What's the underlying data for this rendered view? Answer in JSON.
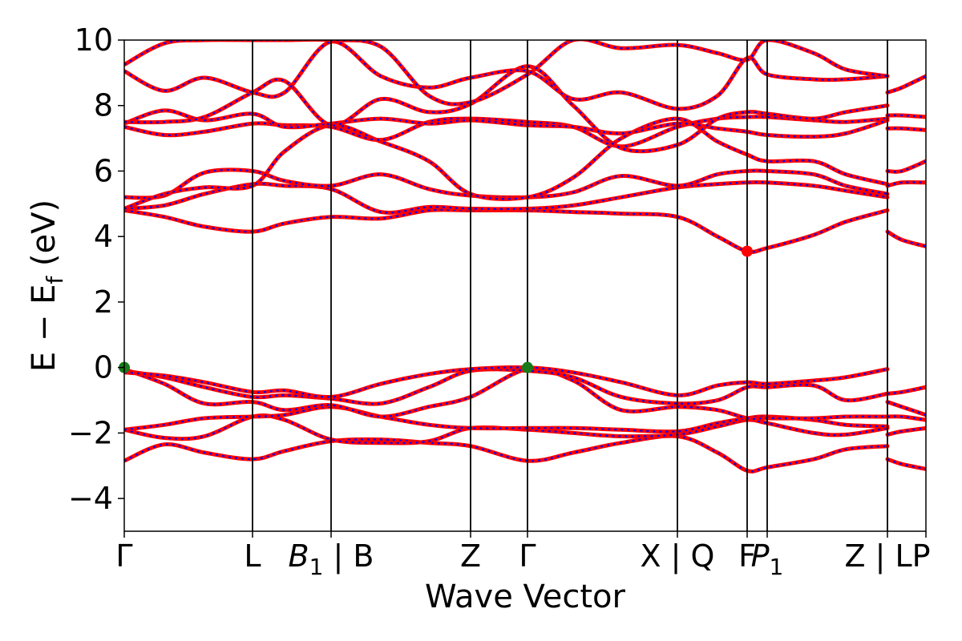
{
  "chart_data": {
    "type": "line",
    "xlabel": "Wave Vector",
    "ylabel": "E − E_f (eV)",
    "ylabel_parts": {
      "main": "E − E",
      "sub": "f",
      "unit": " (eV)"
    },
    "ylim": [
      -5,
      10
    ],
    "x_range": [
      0,
      100
    ],
    "y_ticks": [
      "−4",
      "−2",
      "0",
      "2",
      "4",
      "6",
      "8",
      "10"
    ],
    "y_tick_values": [
      -4,
      -2,
      0,
      2,
      4,
      6,
      8,
      10
    ],
    "kpoints": [
      {
        "label": "Γ",
        "x": 0
      },
      {
        "label": "L",
        "x": 16
      },
      {
        "label": "B",
        "sub": "1",
        "suffix": " | B",
        "x": 25.8
      },
      {
        "label": "Z",
        "x": 43.2
      },
      {
        "label": "Γ",
        "x": 50.3
      },
      {
        "label": "X | Q",
        "x": 69
      },
      {
        "label": "F",
        "x": 77.7
      },
      {
        "label": "P",
        "sub": "1",
        "x": 80.2
      },
      {
        "label": "Z | LP",
        "x": 95.2
      },
      {
        "label": "",
        "x": 100
      }
    ],
    "colors": {
      "band_solid": "#ff0000",
      "band_dashed": "#0000ff",
      "vbm_marker": "#1a7a1a",
      "cbm_marker": "#ff0000",
      "kpath_line": "#000000"
    },
    "markers": [
      {
        "name": "vbm",
        "x": 0,
        "y": 0,
        "color": "#1a7a1a"
      },
      {
        "name": "vbm",
        "x": 50.3,
        "y": 0,
        "color": "#1a7a1a"
      },
      {
        "name": "cbm",
        "x": 77.7,
        "y": 3.55,
        "color": "#ff0000"
      }
    ],
    "series": [
      {
        "x": [
          0,
          5,
          10,
          16,
          20,
          25.8,
          32,
          38,
          43.2,
          50.3,
          56,
          62,
          69,
          74,
          77.7,
          80.2,
          86,
          90,
          95.2
        ],
        "y": [
          -2.85,
          -2.35,
          -2.6,
          -2.8,
          -2.55,
          -2.25,
          -2.2,
          -2.3,
          -2.4,
          -2.85,
          -2.6,
          -2.3,
          -2.1,
          -2.6,
          -3.15,
          -3.05,
          -2.8,
          -2.5,
          -2.4
        ]
      },
      {
        "x": [
          0,
          5,
          10,
          16,
          20,
          25.8,
          32,
          38,
          43.2,
          50.3,
          56,
          62,
          69,
          74,
          77.7,
          80.2,
          86,
          90,
          95.2
        ],
        "y": [
          -1.9,
          -2.15,
          -2.1,
          -1.5,
          -1.6,
          -2.2,
          -2.3,
          -2.25,
          -1.85,
          -1.9,
          -2.0,
          -2.1,
          -2.05,
          -1.8,
          -1.6,
          -1.7,
          -2.0,
          -2.05,
          -1.85
        ]
      },
      {
        "x": [
          0,
          5,
          10,
          16,
          20,
          25.8,
          32,
          38,
          43.2,
          50.3,
          56,
          62,
          69,
          74,
          77.7,
          80.2,
          86,
          90,
          95.2
        ],
        "y": [
          -1.9,
          -1.75,
          -1.55,
          -1.5,
          -1.45,
          -1.2,
          -1.5,
          -1.75,
          -1.85,
          -1.85,
          -1.85,
          -1.9,
          -1.95,
          -1.7,
          -1.55,
          -1.5,
          -1.6,
          -1.75,
          -1.8
        ]
      },
      {
        "x": [
          0,
          5,
          10,
          16,
          20,
          25.8,
          32,
          38,
          43.2,
          50.3,
          56,
          62,
          69,
          74,
          77.7,
          80.2,
          86,
          90,
          95.2
        ],
        "y": [
          -0.05,
          -0.5,
          -1.1,
          -1.05,
          -1.3,
          -1.15,
          -1.5,
          -1.2,
          -0.9,
          -0.05,
          -0.4,
          -1.3,
          -1.2,
          -1.3,
          -1.55,
          -1.55,
          -1.55,
          -1.5,
          -1.5
        ]
      },
      {
        "x": [
          0,
          5,
          10,
          16,
          20,
          25.8,
          32,
          38,
          43.2,
          50.3,
          56,
          62,
          69,
          74,
          77.7,
          80.2,
          86,
          90,
          95.2
        ],
        "y": [
          -0.1,
          -0.3,
          -0.6,
          -0.9,
          -0.85,
          -0.95,
          -1.1,
          -0.6,
          -0.1,
          -0.1,
          -0.3,
          -0.9,
          -1.1,
          -1.0,
          -0.6,
          -0.6,
          -0.55,
          -1.0,
          -0.8
        ]
      },
      {
        "x": [
          0,
          5,
          10,
          16,
          20,
          25.8,
          32,
          38,
          43.2,
          50.3,
          56,
          62,
          69,
          74,
          77.7,
          80.2,
          86,
          90,
          95.2
        ],
        "y": [
          -0.15,
          -0.25,
          -0.45,
          -0.75,
          -0.7,
          -0.9,
          -0.5,
          -0.2,
          -0.05,
          0.0,
          -0.15,
          -0.45,
          -0.85,
          -0.55,
          -0.45,
          -0.5,
          -0.4,
          -0.3,
          -0.05
        ]
      },
      {
        "x": [
          0,
          5,
          10,
          16,
          20,
          25.8,
          32,
          38,
          43.2,
          50.3,
          56,
          62,
          69,
          74,
          77.7,
          80.2,
          86,
          90,
          95.2
        ],
        "y": [
          4.8,
          4.6,
          4.3,
          4.15,
          4.4,
          4.6,
          4.55,
          4.8,
          4.8,
          4.8,
          4.75,
          4.7,
          4.6,
          4.0,
          3.55,
          3.65,
          4.05,
          4.45,
          4.8
        ]
      },
      {
        "x": [
          0,
          5,
          10,
          16,
          20,
          25.8,
          32,
          38,
          43.2,
          50.3,
          56,
          62,
          69,
          74,
          77.7,
          80.2,
          86,
          90,
          95.2
        ],
        "y": [
          4.85,
          4.95,
          5.3,
          5.6,
          5.55,
          5.45,
          4.75,
          4.9,
          4.85,
          4.85,
          4.95,
          5.2,
          5.5,
          5.6,
          5.65,
          5.65,
          5.55,
          5.4,
          5.2
        ]
      },
      {
        "x": [
          0,
          5,
          10,
          16,
          20,
          25.8,
          32,
          38,
          43.2,
          50.3,
          56,
          62,
          69,
          74,
          77.7,
          80.2,
          86,
          90,
          95.2
        ],
        "y": [
          5.2,
          5.25,
          5.95,
          6.0,
          5.7,
          5.55,
          5.9,
          5.45,
          5.25,
          5.2,
          5.35,
          5.85,
          5.55,
          5.9,
          6.0,
          6.0,
          5.9,
          5.55,
          5.3
        ]
      },
      {
        "x": [
          0,
          5,
          10,
          16,
          20,
          25.8,
          32,
          38,
          43.2,
          50.3,
          56,
          62,
          69,
          74,
          77.7,
          80.2,
          86,
          90,
          95.2
        ],
        "y": [
          4.85,
          5.3,
          5.5,
          5.55,
          6.6,
          7.4,
          6.9,
          6.3,
          5.3,
          5.2,
          5.8,
          7.0,
          7.6,
          6.9,
          6.5,
          6.3,
          6.3,
          5.9,
          5.6
        ]
      },
      {
        "x": [
          0,
          5,
          10,
          16,
          20,
          25.8,
          32,
          38,
          43.2,
          50.3,
          56,
          62,
          69,
          74,
          77.7,
          80.2,
          86,
          90,
          95.2
        ],
        "y": [
          7.35,
          7.1,
          7.2,
          7.45,
          7.4,
          7.35,
          6.95,
          7.5,
          7.6,
          7.5,
          7.35,
          6.75,
          7.35,
          7.6,
          7.65,
          7.65,
          7.55,
          7.5,
          7.6
        ]
      },
      {
        "x": [
          0,
          5,
          10,
          16,
          20,
          25.8,
          32,
          38,
          43.2,
          50.3,
          56,
          62,
          69,
          74,
          77.7,
          80.2,
          86,
          90,
          95.2
        ],
        "y": [
          7.45,
          7.85,
          7.55,
          7.75,
          7.35,
          7.45,
          7.6,
          7.45,
          7.55,
          7.4,
          7.35,
          7.15,
          7.45,
          7.3,
          7.2,
          7.1,
          7.05,
          7.15,
          7.55
        ]
      },
      {
        "x": [
          0,
          5,
          10,
          16,
          20,
          25.8,
          32,
          38,
          43.2,
          50.3,
          56,
          62,
          69,
          74,
          77.7,
          80.2,
          86,
          90,
          95.2
        ],
        "y": [
          7.5,
          7.5,
          7.65,
          8.4,
          8.75,
          7.4,
          8.2,
          7.8,
          8.05,
          9.2,
          8.0,
          6.7,
          6.8,
          7.6,
          7.8,
          7.75,
          7.6,
          7.8,
          8.0
        ]
      },
      {
        "x": [
          0,
          5,
          10,
          16,
          20,
          25.8,
          32,
          38,
          43.2,
          50.3,
          56,
          62,
          69,
          74,
          77.7,
          80.2,
          86,
          90,
          95.2
        ],
        "y": [
          9.05,
          8.45,
          8.85,
          8.4,
          8.4,
          9.95,
          8.9,
          8.55,
          8.85,
          9.05,
          8.2,
          8.4,
          7.9,
          8.3,
          9.45,
          8.95,
          8.8,
          8.8,
          8.9
        ]
      },
      {
        "x": [
          0,
          5,
          10,
          16,
          20,
          25.8,
          32,
          38,
          43.2,
          50.3,
          56,
          62,
          69,
          74,
          77.7,
          80.2,
          86,
          90,
          95.2
        ],
        "y": [
          9.25,
          9.9,
          10.0,
          10.0,
          10.0,
          10.0,
          9.8,
          8.3,
          8.1,
          8.95,
          10.0,
          9.75,
          9.85,
          9.6,
          9.4,
          10.0,
          9.6,
          9.1,
          8.9
        ]
      },
      {
        "x": [
          95.2,
          97,
          100
        ],
        "y": [
          -2.8,
          -2.95,
          -3.1
        ]
      },
      {
        "x": [
          95.2,
          97,
          100
        ],
        "y": [
          -2.05,
          -1.95,
          -1.85
        ]
      },
      {
        "x": [
          95.2,
          97,
          100
        ],
        "y": [
          -1.5,
          -1.5,
          -1.6
        ]
      },
      {
        "x": [
          95.2,
          97,
          100
        ],
        "y": [
          -1.05,
          -1.2,
          -1.45
        ]
      },
      {
        "x": [
          95.2,
          97,
          100
        ],
        "y": [
          -0.8,
          -0.75,
          -0.6
        ]
      },
      {
        "x": [
          95.2,
          97,
          100
        ],
        "y": [
          4.15,
          3.9,
          3.7
        ]
      },
      {
        "x": [
          95.2,
          97,
          100
        ],
        "y": [
          5.55,
          5.65,
          5.65
        ]
      },
      {
        "x": [
          95.2,
          97,
          100
        ],
        "y": [
          6.0,
          6.0,
          6.3
        ]
      },
      {
        "x": [
          95.2,
          97,
          100
        ],
        "y": [
          7.7,
          7.7,
          7.65
        ]
      },
      {
        "x": [
          95.2,
          97,
          100
        ],
        "y": [
          7.3,
          7.3,
          7.25
        ]
      },
      {
        "x": [
          95.2,
          97,
          100
        ],
        "y": [
          8.4,
          8.55,
          8.9
        ]
      }
    ]
  }
}
